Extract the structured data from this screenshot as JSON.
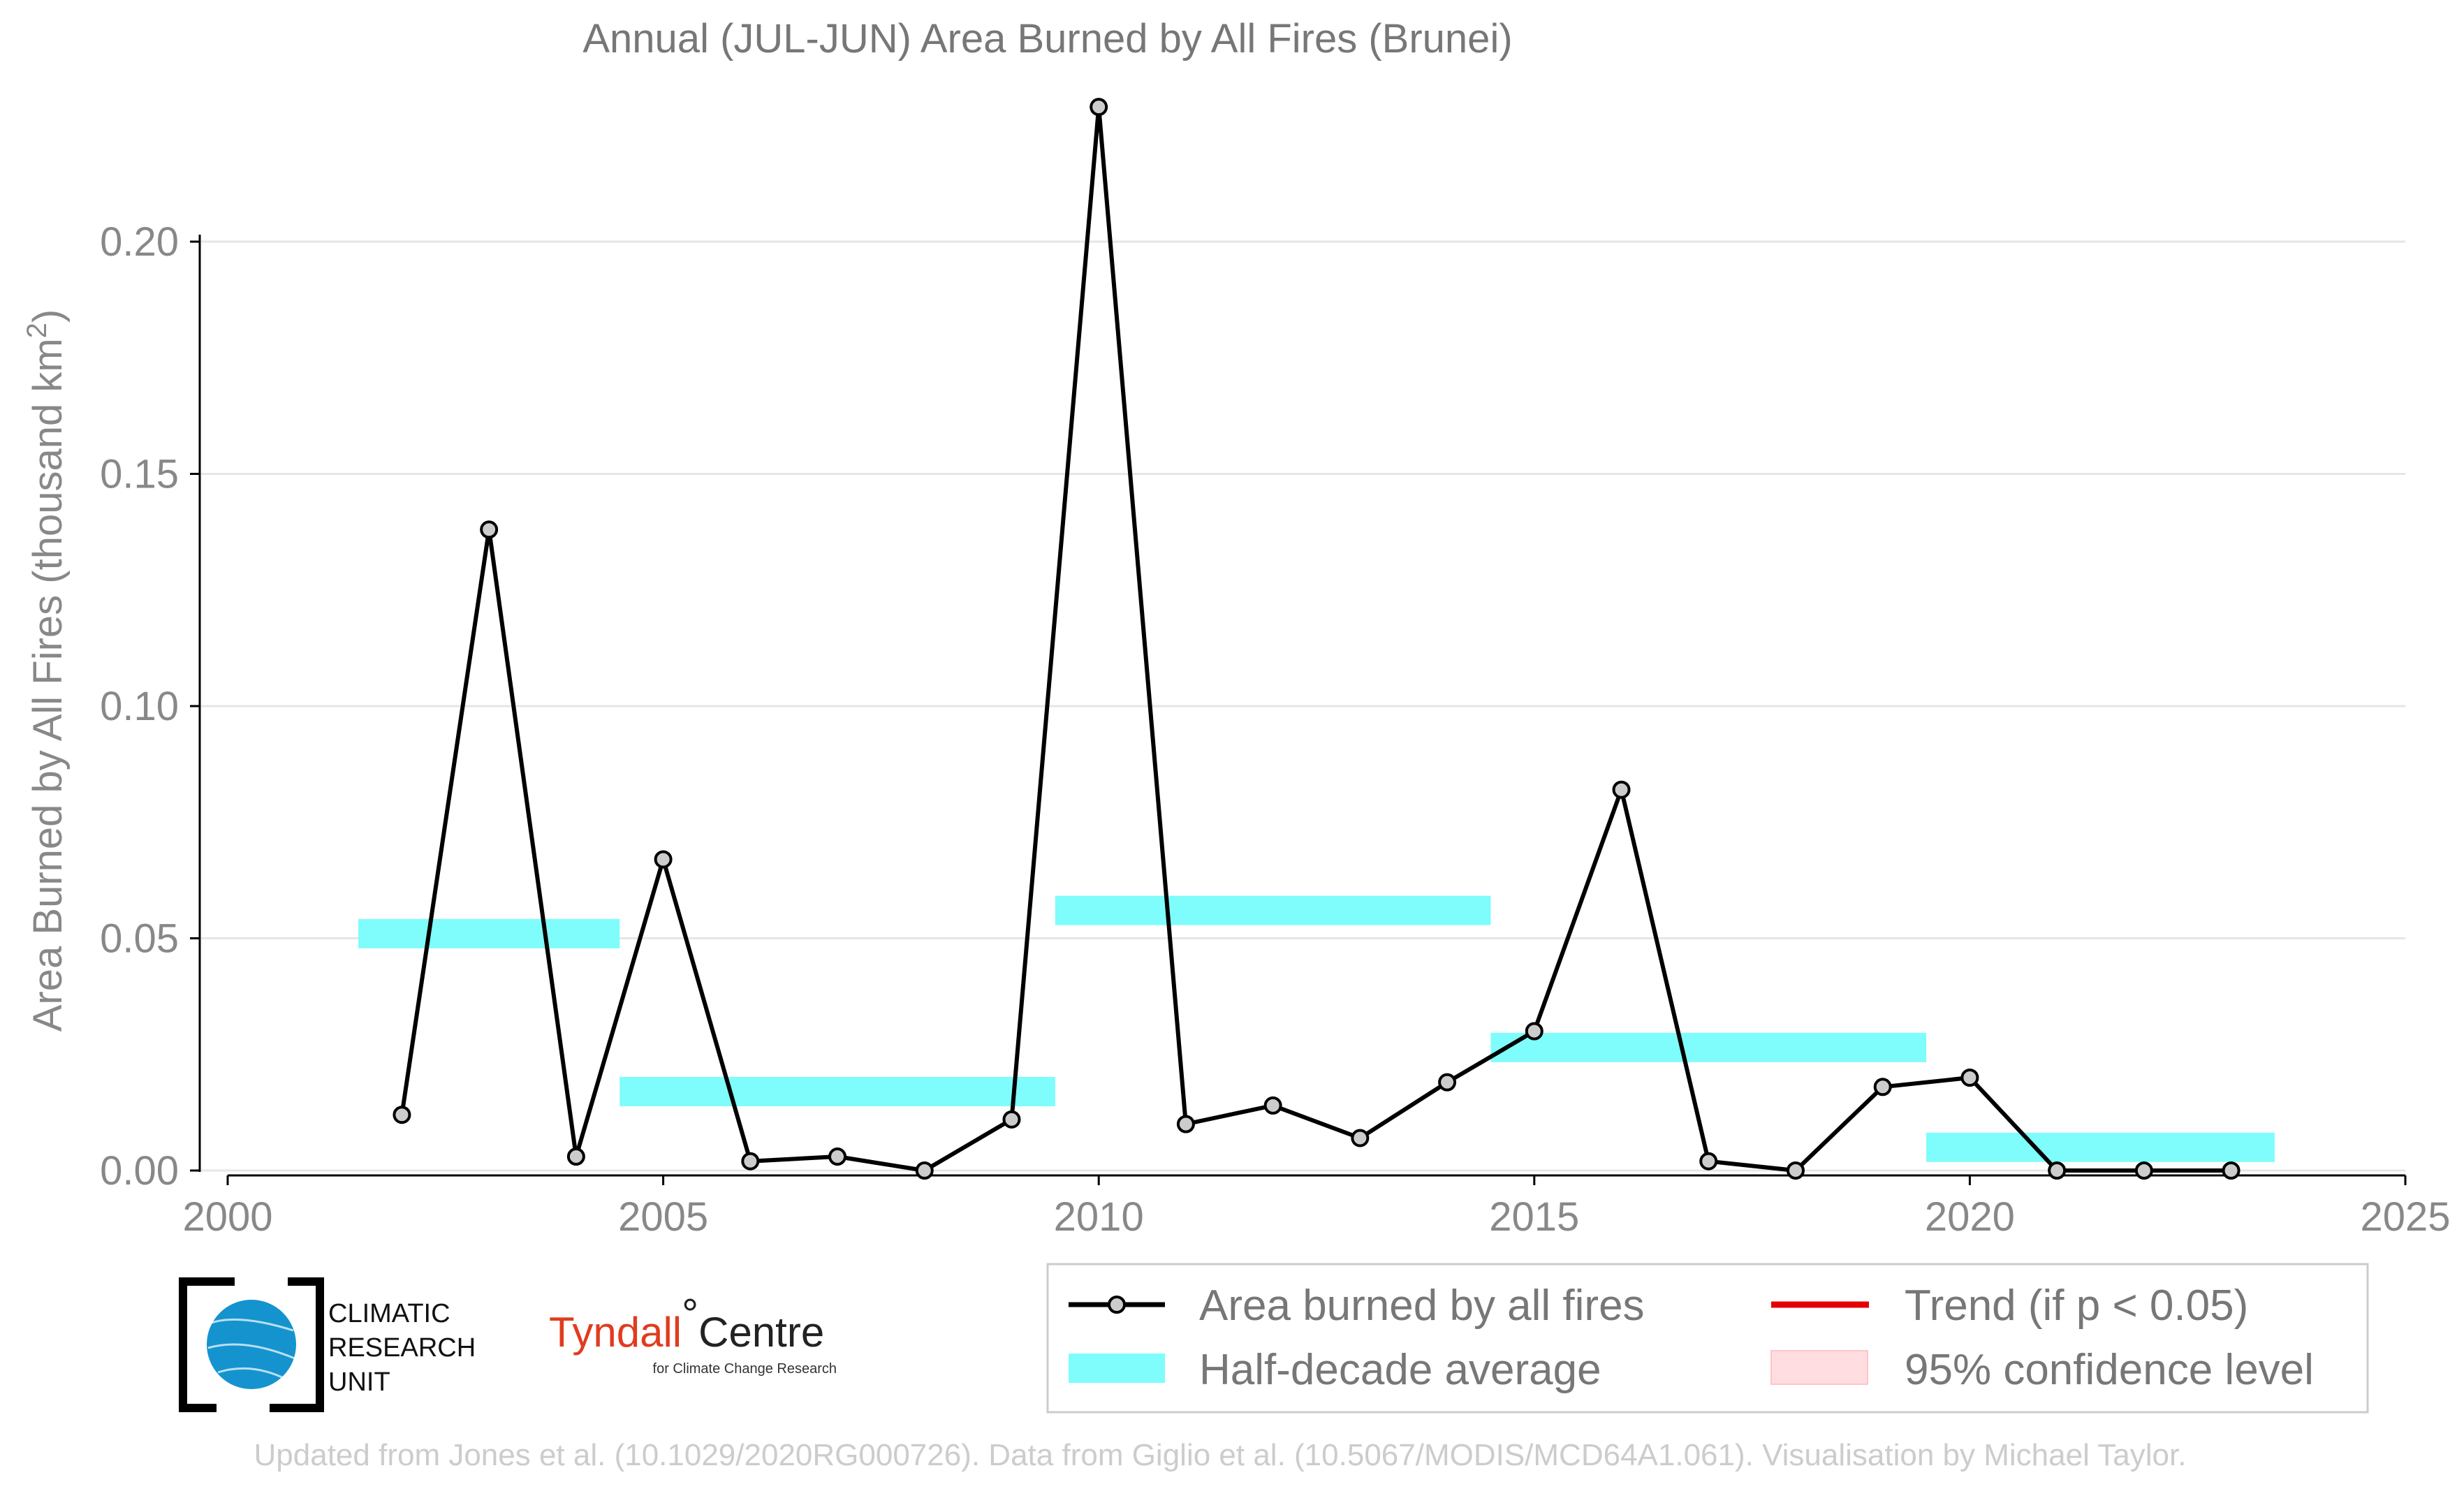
{
  "chart_data": {
    "type": "line",
    "title": "Annual (JUL-JUN) Area Burned by All Fires (Brunei)",
    "ylabel": "Area Burned by All Fires (thousand km",
    "ylabel_sup": "2",
    "ylabel_suffix": ")",
    "xlim": [
      2000,
      2025
    ],
    "ylim": [
      -0.018,
      0.23
    ],
    "xticks": [
      2000,
      2005,
      2010,
      2015,
      2020,
      2025
    ],
    "yticks": [
      0.0,
      0.05,
      0.1,
      0.15,
      0.2
    ],
    "ytick_labels": [
      "0.00",
      "0.05",
      "0.10",
      "0.15",
      "0.20"
    ],
    "grid": "horizontal",
    "series": [
      {
        "name": "Area burned by all fires",
        "type": "line-markers",
        "color": "#000000",
        "x": [
          2002,
          2003,
          2004,
          2005,
          2006,
          2007,
          2008,
          2009,
          2010,
          2011,
          2012,
          2013,
          2014,
          2015,
          2016,
          2017,
          2018,
          2019,
          2020,
          2021,
          2022,
          2023
        ],
        "y": [
          0.012,
          0.138,
          0.003,
          0.067,
          0.002,
          0.003,
          0.0,
          0.011,
          0.229,
          0.01,
          0.014,
          0.007,
          0.019,
          0.03,
          0.082,
          0.002,
          0.0,
          0.018,
          0.02,
          0.0,
          0.0,
          0.0
        ]
      },
      {
        "name": "Half-decade average",
        "type": "bars",
        "color": "#7ffcfc",
        "segments": [
          {
            "x0": 2001.5,
            "x1": 2004.5,
            "y": 0.051
          },
          {
            "x0": 2004.5,
            "x1": 2009.5,
            "y": 0.017
          },
          {
            "x0": 2009.5,
            "x1": 2014.5,
            "y": 0.056
          },
          {
            "x0": 2014.5,
            "x1": 2019.5,
            "y": 0.0265
          },
          {
            "x0": 2019.5,
            "x1": 2023.5,
            "y": 0.005
          }
        ]
      }
    ],
    "legend": {
      "placement": "bottom-right",
      "items": [
        {
          "label": "Area burned by all fires",
          "kind": "line-marker",
          "color": "#000000"
        },
        {
          "label": "Trend (if p < 0.05)",
          "kind": "line",
          "color": "#e60000"
        },
        {
          "label": "Half-decade average",
          "kind": "band",
          "color": "#7ffcfc"
        },
        {
          "label": "95% confidence level",
          "kind": "patch",
          "color": "#ffdde0"
        }
      ]
    }
  },
  "logos": {
    "cru": [
      "CLIMATIC",
      "RESEARCH",
      "UNIT"
    ],
    "tyndall_name": "Tyndall",
    "tyndall_degree": "°",
    "tyndall_centre": "Centre",
    "tyndall_sub": "for Climate Change Research"
  },
  "footer": "Updated from Jones et al. (10.1029/2020RG000726). Data from Giglio et al. (10.5067/MODIS/MCD64A1.061). Visualisation by Michael Taylor."
}
